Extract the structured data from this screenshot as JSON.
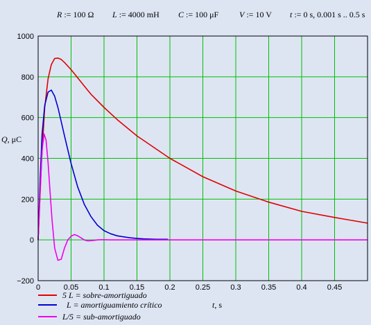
{
  "params": {
    "R": {
      "symbol": "R",
      "assign": ":=",
      "value": "100 Ω"
    },
    "L": {
      "symbol": "L",
      "assign": ":=",
      "value": "4000 mH"
    },
    "C": {
      "symbol": "C",
      "assign": ":=",
      "value": "100 μF"
    },
    "V": {
      "symbol": "V",
      "assign": ":=",
      "value": "10 V"
    },
    "t": {
      "symbol": "t",
      "assign": ":=",
      "value": "0 s, 0.001 s .. 0.5 s"
    }
  },
  "chart_data": {
    "type": "line",
    "xlabel": {
      "var": "t",
      "unit": ", s"
    },
    "ylabel": {
      "var": "Q",
      "unit": ", μC"
    },
    "xlim": [
      0,
      0.5
    ],
    "ylim": [
      -200,
      1000
    ],
    "grid": true,
    "legend_position": "bottom-left",
    "x_ticks": [
      0,
      0.05,
      0.1,
      0.15,
      0.2,
      0.25,
      0.3,
      0.35,
      0.4,
      0.45
    ],
    "x_tick_labels": [
      "0",
      "0.05",
      "0.1",
      "0.15",
      "0.2",
      "0.25",
      "0.3",
      "0.35",
      "0.4",
      "0.45"
    ],
    "y_ticks": [
      -200,
      0,
      200,
      400,
      600,
      800,
      1000
    ],
    "y_tick_labels": [
      "−200",
      "0",
      "200",
      "400",
      "600",
      "800",
      "1000"
    ],
    "series": [
      {
        "name": "5 L = sobre-amortiguado",
        "color": "#e00000",
        "x": [
          0,
          0.005,
          0.01,
          0.015,
          0.02,
          0.025,
          0.03,
          0.035,
          0.04,
          0.05,
          0.06,
          0.07,
          0.08,
          0.1,
          0.12,
          0.15,
          0.2,
          0.25,
          0.3,
          0.35,
          0.4,
          0.45,
          0.5
        ],
        "y": [
          0,
          380,
          650,
          790,
          860,
          890,
          892,
          885,
          870,
          835,
          795,
          755,
          715,
          650,
          590,
          510,
          400,
          310,
          240,
          185,
          140,
          110,
          82
        ]
      },
      {
        "name": "L = amortiguamiento crítico",
        "color": "#0000d0",
        "x": [
          0,
          0.003,
          0.006,
          0.01,
          0.015,
          0.02,
          0.025,
          0.03,
          0.035,
          0.04,
          0.05,
          0.06,
          0.07,
          0.08,
          0.09,
          0.1,
          0.11,
          0.12,
          0.13,
          0.14,
          0.15,
          0.16,
          0.18,
          0.197
        ],
        "y": [
          0,
          300,
          520,
          660,
          725,
          735,
          705,
          650,
          580,
          510,
          375,
          260,
          175,
          115,
          72,
          45,
          30,
          20,
          15,
          10,
          7,
          5,
          3,
          3
        ]
      },
      {
        "name": "L/5 = sub-amortiguado",
        "color": "#ee00ee",
        "x": [
          0,
          0.003,
          0.006,
          0.009,
          0.012,
          0.015,
          0.018,
          0.021,
          0.025,
          0.03,
          0.035,
          0.04,
          0.045,
          0.05,
          0.055,
          0.06,
          0.065,
          0.07,
          0.075,
          0.08,
          0.085,
          0.09,
          0.095,
          0.1,
          0.11,
          0.12,
          0.15,
          0.2,
          0.3,
          0.4,
          0.5
        ],
        "y": [
          0,
          240,
          440,
          520,
          490,
          380,
          240,
          100,
          -40,
          -100,
          -95,
          -40,
          0,
          18,
          26,
          20,
          10,
          0,
          -5,
          -4,
          -2,
          0,
          1,
          1,
          0,
          0,
          0,
          0,
          0,
          0,
          0
        ]
      }
    ]
  }
}
